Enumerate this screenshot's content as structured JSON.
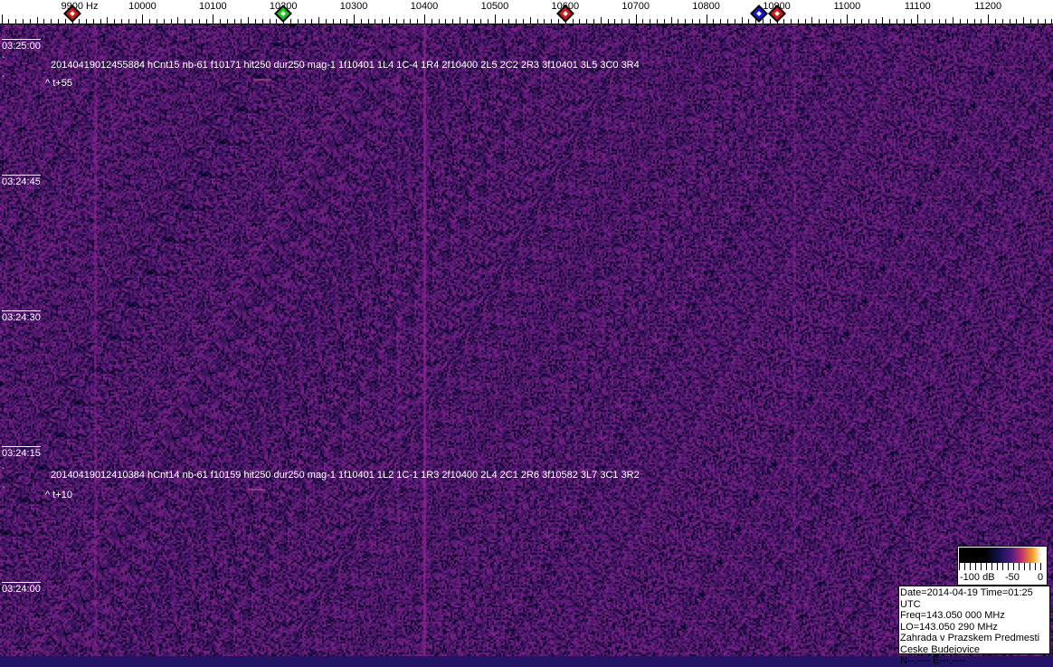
{
  "ruler": {
    "unit_label": "9900 Hz",
    "labels": [
      "10000",
      "10100",
      "10200",
      "10300",
      "10400",
      "10500",
      "10600",
      "10700",
      "10800",
      "10900",
      "11000",
      "11100",
      "11200"
    ],
    "markers": [
      {
        "freq_hz": 9900,
        "color": "#d01818"
      },
      {
        "freq_hz": 10200,
        "color": "#18c818"
      },
      {
        "freq_hz": 10600,
        "color": "#d01818"
      },
      {
        "freq_hz": 10875,
        "color": "#1818d0"
      },
      {
        "freq_hz": 10900,
        "color": "#d01818"
      }
    ]
  },
  "time_labels": [
    "03:25:00",
    "03:24:45",
    "03:24:30",
    "03:24:15",
    "03:24:00"
  ],
  "annotations": [
    {
      "line": "20140419012455884 hCnt15 nb-61 f10171 hit250 dur250 mag-1 1f10401 1L4 1C-4 1R4 2f10400 2L5 2C2 2R3 3f10401 3L5 3C0 3R4",
      "offset": "^ t+55"
    },
    {
      "line": "20140419012410384 hCnt14 nb-61 f10159 hit250 dur250 mag-1 1f10401 1L2 1C-1 1R3 2f10400 2L4 2C1 2R6 3f10582 3L7 3C1 3R2",
      "offset": "^ t+10"
    }
  ],
  "colorbar": {
    "min_label": "-100 dB",
    "mid_label": "-50",
    "max_label": "0"
  },
  "info": {
    "date_time": "Date=2014-04-19 Time=01:25 UTC",
    "freq": "Freq=143.050 000 MHz",
    "lo": "LO=143.050 290 MHz",
    "location1": "Zahrada v Prazskem Predmesti",
    "location2": "Ceske Budejovice",
    "coords": "N--.---- E---.----"
  }
}
